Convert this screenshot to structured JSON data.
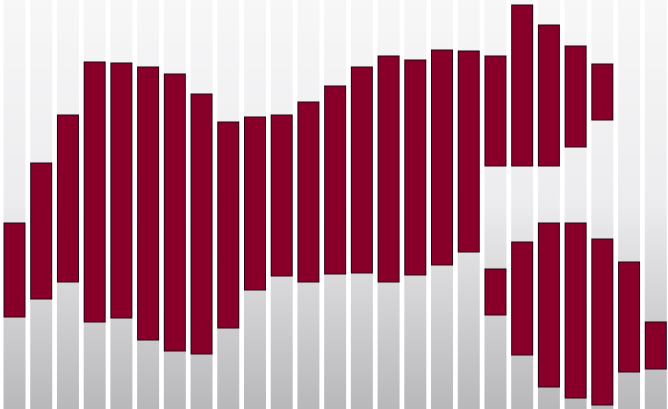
{
  "chart_data": {
    "type": "bar",
    "title": "",
    "xlabel": "",
    "ylabel": "",
    "ylim": [
      0,
      409
    ],
    "grid": false,
    "colors": {
      "bar_fill": "#880029",
      "bar_stroke": "#2a0010",
      "column_top": "#f7f7f8",
      "column_bottom": "#b8b8bb"
    },
    "columns": 25,
    "segments": [
      {
        "column": 0,
        "low": 92,
        "high": 186
      },
      {
        "column": 1,
        "low": 110,
        "high": 246
      },
      {
        "column": 2,
        "low": 127,
        "high": 294
      },
      {
        "column": 3,
        "low": 87,
        "high": 347
      },
      {
        "column": 4,
        "low": 91,
        "high": 346
      },
      {
        "column": 5,
        "low": 69,
        "high": 342
      },
      {
        "column": 6,
        "low": 58,
        "high": 335
      },
      {
        "column": 7,
        "low": 55,
        "high": 315
      },
      {
        "column": 8,
        "low": 81,
        "high": 287
      },
      {
        "column": 9,
        "low": 119,
        "high": 292
      },
      {
        "column": 10,
        "low": 133,
        "high": 294
      },
      {
        "column": 11,
        "low": 127,
        "high": 307
      },
      {
        "column": 12,
        "low": 135,
        "high": 323
      },
      {
        "column": 13,
        "low": 136,
        "high": 342
      },
      {
        "column": 14,
        "low": 127,
        "high": 353
      },
      {
        "column": 15,
        "low": 134,
        "high": 349
      },
      {
        "column": 16,
        "low": 144,
        "high": 359
      },
      {
        "column": 17,
        "low": 157,
        "high": 358
      },
      {
        "column": 18,
        "low": 243,
        "high": 353
      },
      {
        "column": 18,
        "low": 94,
        "high": 140
      },
      {
        "column": 19,
        "low": 243,
        "high": 404
      },
      {
        "column": 19,
        "low": 54,
        "high": 167
      },
      {
        "column": 20,
        "low": 243,
        "high": 384
      },
      {
        "column": 20,
        "low": 22,
        "high": 186
      },
      {
        "column": 21,
        "low": 262,
        "high": 363
      },
      {
        "column": 21,
        "low": 11,
        "high": 186
      },
      {
        "column": 22,
        "low": 289,
        "high": 345
      },
      {
        "column": 22,
        "low": 4,
        "high": 170
      },
      {
        "column": 23,
        "low": 37,
        "high": 147
      },
      {
        "column": 24,
        "low": 40,
        "high": 87
      }
    ]
  }
}
